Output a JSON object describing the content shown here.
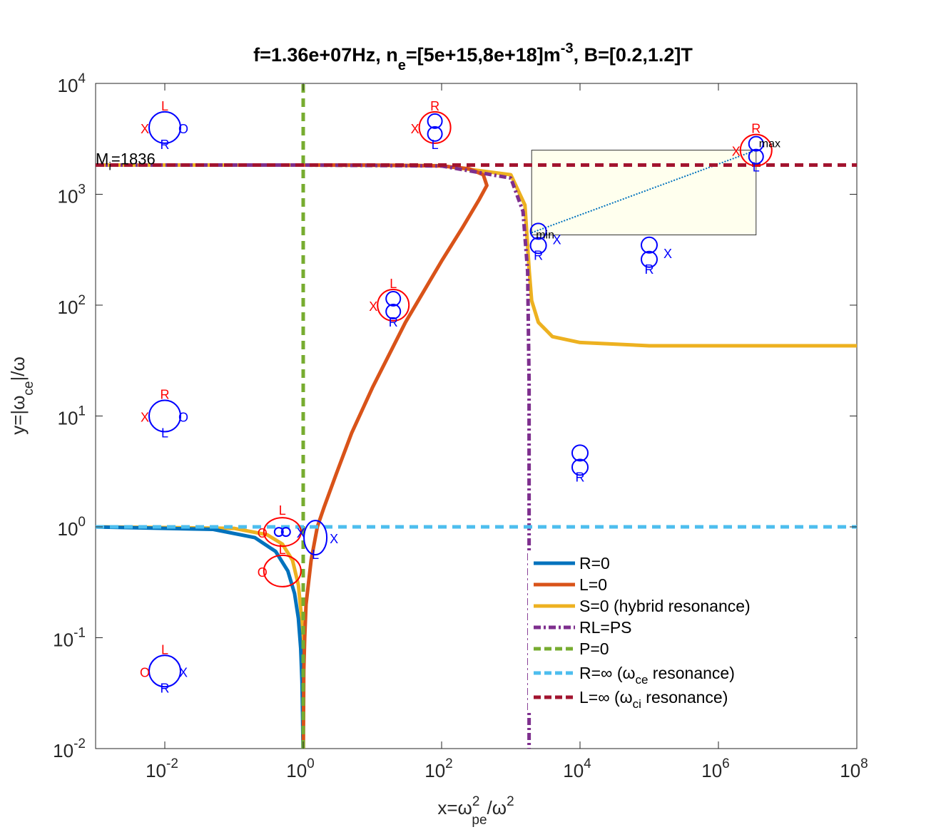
{
  "title": {
    "part1": "f=1.36e+07Hz, n",
    "sub1": "e",
    "part2": "=[5e+15,8e+18]m",
    "sup1": "-3",
    "part3": ", B=[0.2,1.2]T"
  },
  "xlabel": {
    "pre": "x=ω",
    "sup": "2",
    "sub": "pe",
    "post": "/ω",
    "sup2": "2"
  },
  "ylabel": {
    "pre": "y=|ω",
    "sub": "ce",
    "post": "|/ω"
  },
  "annotations": {
    "mi": "M",
    "mi_sub": "i",
    "mi_val": "=1836",
    "min": "min",
    "max": "max"
  },
  "chart_data": {
    "type": "line",
    "title": "f=1.36e+07Hz, n_e=[5e+15,8e+18]m^-3, B=[0.2,1.2]T",
    "xlabel": "x=ω_pe^2/ω^2",
    "ylabel": "y=|ω_ce|/ω",
    "xscale": "log",
    "yscale": "log",
    "xlim": [
      0.001,
      100000000
    ],
    "ylim": [
      0.01,
      10000
    ],
    "grid": false,
    "legend_position": "bottom-right",
    "x_ticks": [
      {
        "base": "10",
        "exp": "-2"
      },
      {
        "base": "10",
        "exp": "0"
      },
      {
        "base": "10",
        "exp": "2"
      },
      {
        "base": "10",
        "exp": "4"
      },
      {
        "base": "10",
        "exp": "6"
      },
      {
        "base": "10",
        "exp": "8"
      }
    ],
    "y_ticks": [
      {
        "base": "10",
        "exp": "-2"
      },
      {
        "base": "10",
        "exp": "-1"
      },
      {
        "base": "10",
        "exp": "0"
      },
      {
        "base": "10",
        "exp": "1"
      },
      {
        "base": "10",
        "exp": "2"
      },
      {
        "base": "10",
        "exp": "3"
      },
      {
        "base": "10",
        "exp": "4"
      }
    ],
    "series": [
      {
        "name": "R=0",
        "color": "#0072BD",
        "style": "solid",
        "x": [
          0.001,
          0.05,
          0.2,
          0.4,
          0.6,
          0.75,
          0.85,
          0.92,
          0.96,
          0.98,
          0.995
        ],
        "y": [
          0.999,
          0.95,
          0.8,
          0.6,
          0.4,
          0.25,
          0.15,
          0.08,
          0.04,
          0.02,
          0.01
        ]
      },
      {
        "name": "L=0",
        "color": "#D95319",
        "style": "solid",
        "x": [
          1.005,
          1.02,
          1.05,
          1.1,
          1.3,
          1.6,
          2.0,
          3.0,
          5.0,
          10,
          30,
          100,
          200,
          350,
          450,
          400,
          250,
          100,
          20,
          5,
          1
        ],
        "y": [
          0.01,
          0.05,
          0.1,
          0.2,
          0.5,
          1.0,
          1.5,
          3.0,
          7.0,
          18,
          70,
          250,
          500,
          900,
          1200,
          1500,
          1700,
          1800,
          1830,
          1835,
          1836
        ]
      },
      {
        "name": "S=0 (hybrid resonance)",
        "color": "#EDB120",
        "style": "solid",
        "x": [
          0.001,
          0.1,
          0.3,
          0.5,
          0.7,
          0.85,
          0.95,
          0.99,
          0.999,
          0.001,
          1,
          100,
          1000,
          1600,
          1850,
          2000,
          2500,
          4000,
          10000,
          100000,
          1000000,
          100000000
        ],
        "y": [
          1.0,
          0.97,
          0.85,
          0.7,
          0.5,
          0.3,
          0.15,
          0.05,
          0.01,
          1836,
          1836,
          1810,
          1500,
          800,
          200,
          110,
          70,
          52,
          46,
          43,
          43,
          43
        ],
        "note": "two branches: lower hybrid (y<1) and upper branch (x>1836)"
      },
      {
        "name": "RL=PS",
        "color": "#7E2F8E",
        "style": "dash-dot",
        "x": [
          0.001,
          1,
          100,
          1000,
          1500,
          1750,
          1836,
          1836
        ],
        "y": [
          1836,
          1836,
          1800,
          1400,
          700,
          200,
          20,
          0.01
        ]
      },
      {
        "name": "P=0",
        "color": "#77AC30",
        "style": "dashed",
        "x": [
          1,
          1
        ],
        "y": [
          0.01,
          10000
        ]
      },
      {
        "name": "R=∞ (ω_ce resonance)",
        "color": "#4DBEEE",
        "style": "dashed",
        "x": [
          0.001,
          100000000
        ],
        "y": [
          1,
          1
        ]
      },
      {
        "name": "L=∞ (ω_ci resonance)",
        "color": "#A2142F",
        "style": "dashed",
        "x": [
          0.001,
          100000000
        ],
        "y": [
          1836,
          1836
        ]
      }
    ],
    "path": {
      "x": [
        2000,
        3500000
      ],
      "y": [
        450,
        2500
      ],
      "style": "dotted",
      "color": "#0072BD"
    },
    "range_box": {
      "x": [
        2000,
        3500000
      ],
      "y": [
        430,
        2500
      ],
      "fill": "#FFFFEE"
    },
    "mi_value": 1836,
    "wave_glyphs": [
      {
        "x": 0.01,
        "y": 4000,
        "kind": "single",
        "color": "blue",
        "labels": {
          "top": "L",
          "left": "X",
          "right": "O",
          "bottom": "R"
        }
      },
      {
        "x": 80,
        "y": 4000,
        "kind": "peanut-in-circle",
        "color": "red",
        "labels": {
          "top": "R",
          "left": "X",
          "bottom": "L"
        }
      },
      {
        "x": 3500000,
        "y": 2500,
        "kind": "peanut-in-circle",
        "color": "red",
        "labels": {
          "top": "R",
          "left": "X",
          "bottom": "L"
        }
      },
      {
        "x": 2500,
        "y": 400,
        "kind": "peanut",
        "color": "blue",
        "labels": {
          "right": "X",
          "bottom": "R"
        }
      },
      {
        "x": 100000,
        "y": 300,
        "kind": "peanut",
        "color": "blue",
        "labels": {
          "right": "X",
          "bottom": "R"
        }
      },
      {
        "x": 20,
        "y": 100,
        "kind": "peanut-in-circle",
        "color": "red",
        "labels": {
          "top": "L",
          "left": "X",
          "bottom": "R"
        }
      },
      {
        "x": 0.01,
        "y": 10,
        "kind": "single",
        "color": "blue",
        "labels": {
          "top": "R",
          "left": "X",
          "right": "O",
          "bottom": "L"
        }
      },
      {
        "x": 10000,
        "y": 4,
        "kind": "peanut",
        "color": "blue",
        "labels": {
          "bottom": "R"
        }
      },
      {
        "x": 0.5,
        "y": 0.9,
        "kind": "mixed",
        "color": "red",
        "labels": {
          "top": "L",
          "left": "O",
          "right": "X"
        }
      },
      {
        "x": 1.5,
        "y": 0.8,
        "kind": "tall",
        "color": "blue",
        "labels": {
          "right": "X",
          "bottom": "L"
        }
      },
      {
        "x": 0.5,
        "y": 0.4,
        "kind": "ellipse",
        "color": "red",
        "labels": {
          "top": "L",
          "left": "O"
        }
      },
      {
        "x": 0.01,
        "y": 0.05,
        "kind": "single",
        "color": "blue",
        "labels": {
          "top": "L",
          "left": "O",
          "right": "X",
          "bottom": "R"
        }
      }
    ]
  }
}
